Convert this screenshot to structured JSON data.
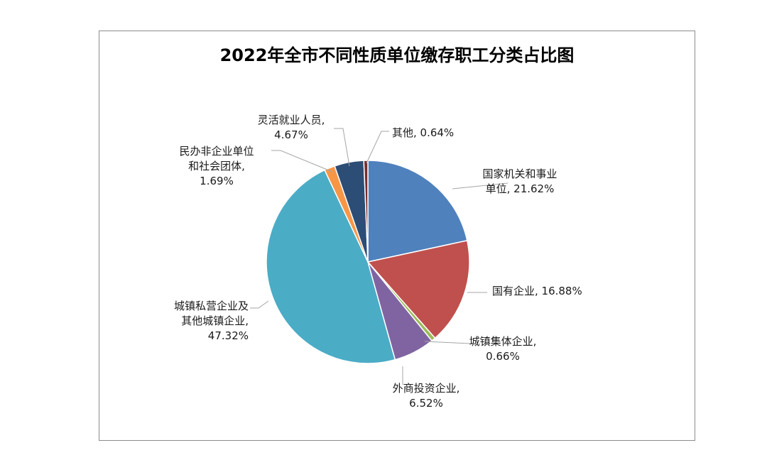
{
  "chart_data": {
    "type": "pie",
    "title": "2022年全市不同性质单位缴存职工分类占比图",
    "slices": [
      {
        "name": "国家机关和事业单位",
        "value": 21.62,
        "label_lines": [
          "国家机关和事业",
          "单位, 21.62%"
        ],
        "color": "#4f81bd"
      },
      {
        "name": "国有企业",
        "value": 16.88,
        "label_lines": [
          "国有企业, 16.88%"
        ],
        "color": "#c0504d"
      },
      {
        "name": "城镇集体企业",
        "value": 0.66,
        "label_lines": [
          "城镇集体企业,",
          "0.66%"
        ],
        "color": "#9bbb59"
      },
      {
        "name": "外商投资企业",
        "value": 6.52,
        "label_lines": [
          "外商投资企业,",
          "6.52%"
        ],
        "color": "#8064a2"
      },
      {
        "name": "城镇私营企业及其他城镇企业",
        "value": 47.32,
        "label_lines": [
          "城镇私营企业及",
          "其他城镇企业,",
          "47.32%"
        ],
        "color": "#4bacc6"
      },
      {
        "name": "民办非企业单位和社会团体",
        "value": 1.69,
        "label_lines": [
          "民办非企业单位",
          "和社会团体,",
          "1.69%"
        ],
        "color": "#f79646"
      },
      {
        "name": "灵活就业人员",
        "value": 4.67,
        "label_lines": [
          "灵活就业人员,",
          "4.67%"
        ],
        "color": "#2c4d75"
      },
      {
        "name": "其他",
        "value": 0.64,
        "label_lines": [
          "其他, 0.64%"
        ],
        "color": "#772c2a"
      }
    ]
  }
}
